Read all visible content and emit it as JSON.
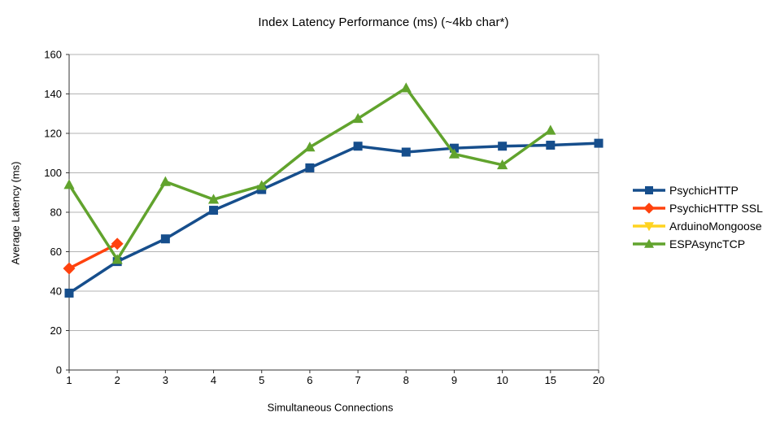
{
  "chart_data": {
    "type": "line",
    "title": "Index Latency Performance (ms) (~4kb char*)",
    "xlabel": "Simultaneous Connections",
    "ylabel": "Average Latency (ms)",
    "categories": [
      "1",
      "2",
      "3",
      "4",
      "5",
      "6",
      "7",
      "8",
      "9",
      "10",
      "15",
      "20"
    ],
    "ylim": [
      0,
      160
    ],
    "yticks": [
      0,
      20,
      40,
      60,
      80,
      100,
      120,
      140,
      160
    ],
    "grid": true,
    "legend_position": "right",
    "colors": {
      "grid": "#b3b3b3",
      "axis": "#333333",
      "background": "#ffffff"
    },
    "series": [
      {
        "name": "PsychicHTTP",
        "color": "#164e8c",
        "marker": "square",
        "values": [
          39,
          55,
          66.5,
          81,
          91.5,
          102.5,
          113.5,
          110.5,
          112.5,
          113.5,
          114,
          115
        ]
      },
      {
        "name": "PsychicHTTP SSL",
        "color": "#ff420e",
        "marker": "diamond",
        "values": [
          51.5,
          64,
          null,
          null,
          null,
          null,
          null,
          null,
          null,
          null,
          null,
          null
        ]
      },
      {
        "name": "ArduinoMongoose",
        "color": "#ffd320",
        "marker": "triangle-down",
        "values": [
          null,
          null,
          null,
          null,
          null,
          null,
          null,
          null,
          null,
          null,
          null,
          null
        ]
      },
      {
        "name": "ESPAsyncTCP",
        "color": "#61a32d",
        "marker": "triangle-up",
        "values": [
          94,
          56,
          95.5,
          86.5,
          93.5,
          113,
          127.5,
          143,
          109.5,
          104,
          121.5,
          null
        ]
      }
    ]
  }
}
